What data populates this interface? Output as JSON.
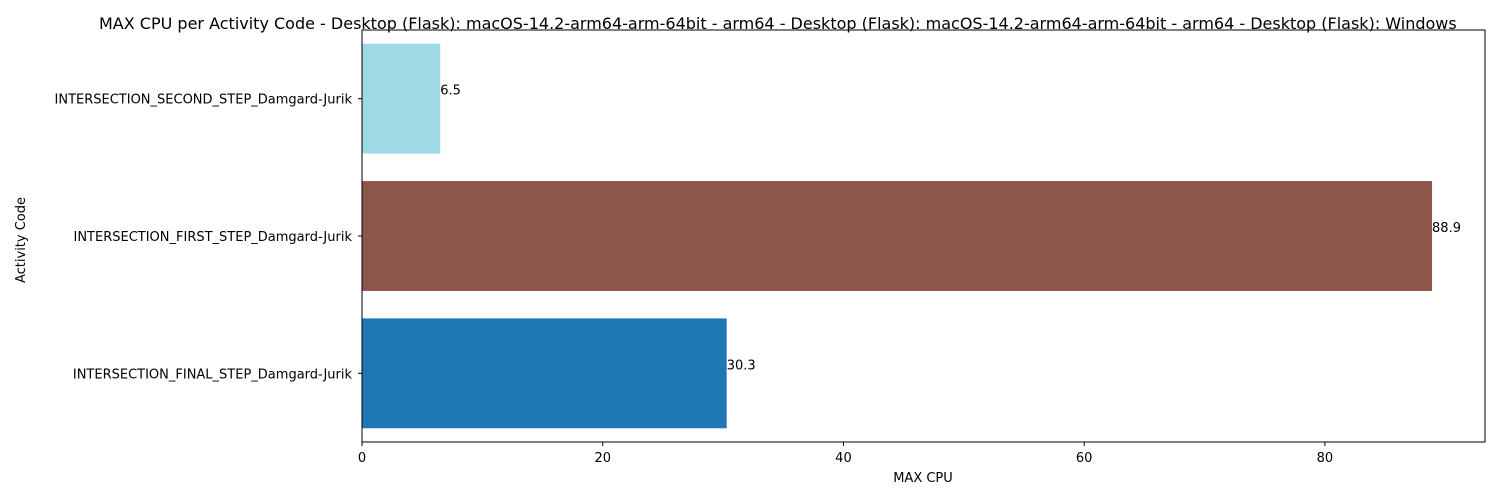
{
  "chart_data": {
    "type": "bar",
    "orientation": "horizontal",
    "title": "MAX CPU per Activity Code - Desktop (Flask): macOS-14.2-arm64-arm-64bit - arm64 - Desktop (Flask): macOS-14.2-arm64-arm-64bit - arm64 - Desktop (Flask): Windows",
    "xlabel": "MAX CPU",
    "ylabel": "Activity Code",
    "categories": [
      "INTERSECTION_FINAL_STEP_Damgard-Jurik",
      "INTERSECTION_FIRST_STEP_Damgard-Jurik",
      "INTERSECTION_SECOND_STEP_Damgard-Jurik"
    ],
    "values": [
      30.3,
      88.9,
      6.5
    ],
    "value_labels": [
      "30.3",
      "88.9",
      "6.5"
    ],
    "colors": [
      "#1f77b4",
      "#8c564b",
      "#9edae5"
    ],
    "xlim": [
      0,
      93.3
    ],
    "xticks": [
      0,
      20,
      40,
      60,
      80
    ],
    "xtick_labels": [
      "0",
      "20",
      "40",
      "60",
      "80"
    ],
    "grid": false,
    "legend": "none"
  }
}
